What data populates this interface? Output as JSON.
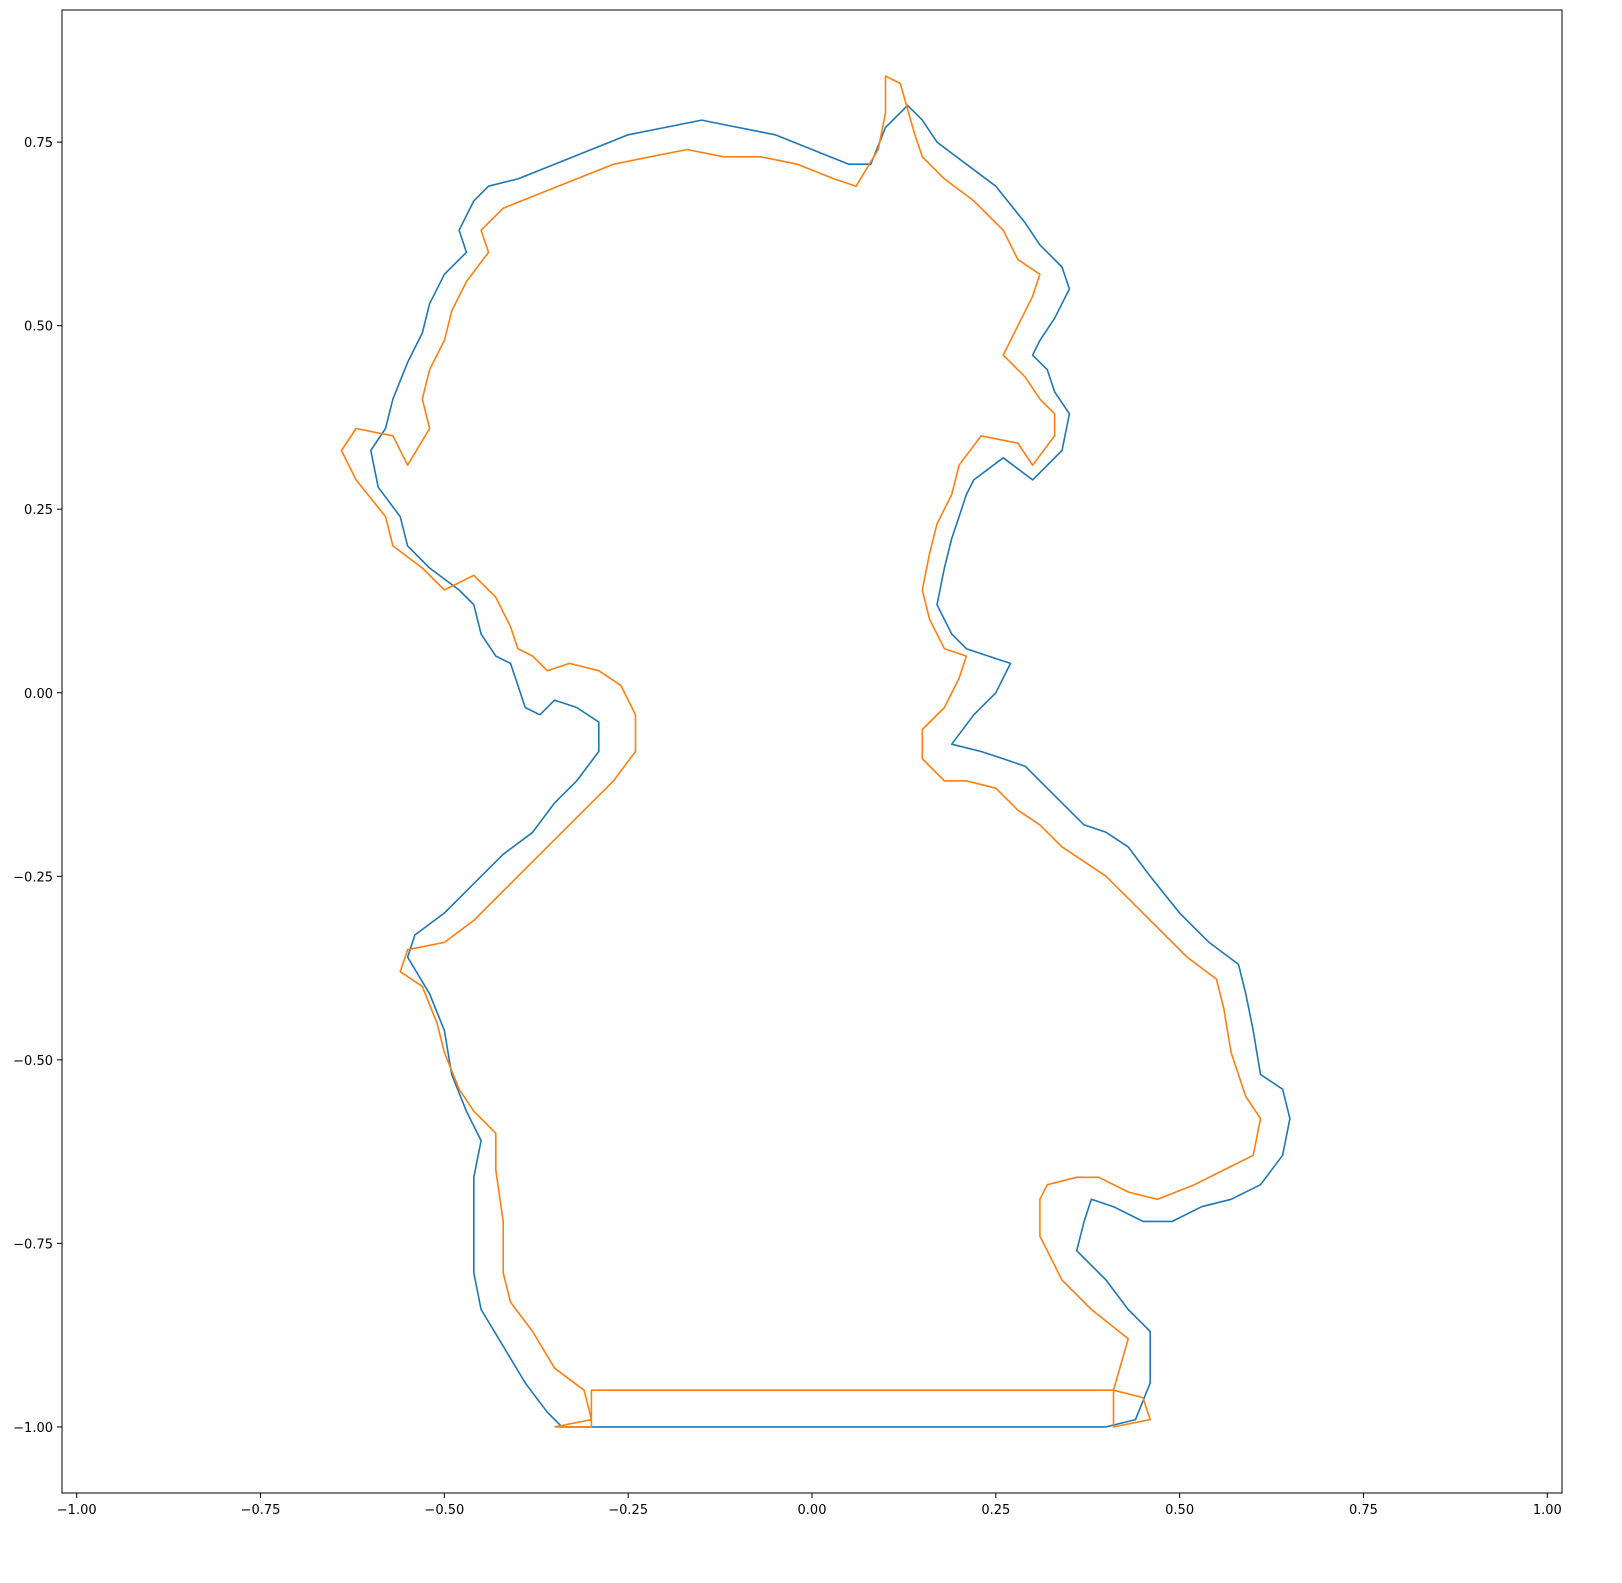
{
  "chart_data": {
    "type": "line",
    "title": "",
    "xlabel": "",
    "ylabel": "",
    "xlim": [
      -1.02,
      1.02
    ],
    "ylim": [
      -1.09,
      0.93
    ],
    "grid": false,
    "legend": "none",
    "x_ticks": [
      {
        "value": -1.0,
        "label": "−1.00"
      },
      {
        "value": -0.75,
        "label": "−0.75"
      },
      {
        "value": -0.5,
        "label": "−0.50"
      },
      {
        "value": -0.25,
        "label": "−0.25"
      },
      {
        "value": 0.0,
        "label": "0.00"
      },
      {
        "value": 0.25,
        "label": "0.25"
      },
      {
        "value": 0.5,
        "label": "0.50"
      },
      {
        "value": 0.75,
        "label": "0.75"
      },
      {
        "value": 1.0,
        "label": "1.00"
      }
    ],
    "y_ticks": [
      {
        "value": 0.75,
        "label": "0.75"
      },
      {
        "value": 0.5,
        "label": "0.50"
      },
      {
        "value": 0.25,
        "label": "0.25"
      },
      {
        "value": 0.0,
        "label": "0.00"
      },
      {
        "value": -0.25,
        "label": "−0.25"
      },
      {
        "value": -0.5,
        "label": "−0.50"
      },
      {
        "value": -0.75,
        "label": "−0.75"
      },
      {
        "value": -1.0,
        "label": "−1.00"
      }
    ],
    "series": [
      {
        "color": "#1f77b4",
        "points": [
          [
            -0.3,
            -1.0
          ],
          [
            0.4,
            -1.0
          ],
          [
            0.44,
            -0.99
          ],
          [
            0.46,
            -0.94
          ],
          [
            0.46,
            -0.87
          ],
          [
            0.43,
            -0.84
          ],
          [
            0.4,
            -0.8
          ],
          [
            0.38,
            -0.78
          ],
          [
            0.36,
            -0.76
          ],
          [
            0.37,
            -0.72
          ],
          [
            0.38,
            -0.69
          ],
          [
            0.41,
            -0.7
          ],
          [
            0.45,
            -0.72
          ],
          [
            0.49,
            -0.72
          ],
          [
            0.53,
            -0.7
          ],
          [
            0.57,
            -0.69
          ],
          [
            0.61,
            -0.67
          ],
          [
            0.64,
            -0.63
          ],
          [
            0.65,
            -0.58
          ],
          [
            0.64,
            -0.54
          ],
          [
            0.61,
            -0.52
          ],
          [
            0.6,
            -0.46
          ],
          [
            0.59,
            -0.41
          ],
          [
            0.58,
            -0.37
          ],
          [
            0.54,
            -0.34
          ],
          [
            0.5,
            -0.3
          ],
          [
            0.46,
            -0.25
          ],
          [
            0.43,
            -0.21
          ],
          [
            0.4,
            -0.19
          ],
          [
            0.37,
            -0.18
          ],
          [
            0.34,
            -0.15
          ],
          [
            0.31,
            -0.12
          ],
          [
            0.29,
            -0.1
          ],
          [
            0.26,
            -0.09
          ],
          [
            0.23,
            -0.08
          ],
          [
            0.19,
            -0.07
          ],
          [
            0.22,
            -0.03
          ],
          [
            0.25,
            0.0
          ],
          [
            0.27,
            0.04
          ],
          [
            0.24,
            0.05
          ],
          [
            0.21,
            0.06
          ],
          [
            0.19,
            0.08
          ],
          [
            0.17,
            0.12
          ],
          [
            0.18,
            0.17
          ],
          [
            0.19,
            0.21
          ],
          [
            0.2,
            0.24
          ],
          [
            0.21,
            0.27
          ],
          [
            0.22,
            0.29
          ],
          [
            0.26,
            0.32
          ],
          [
            0.3,
            0.29
          ],
          [
            0.34,
            0.33
          ],
          [
            0.35,
            0.38
          ],
          [
            0.33,
            0.41
          ],
          [
            0.32,
            0.44
          ],
          [
            0.3,
            0.46
          ],
          [
            0.31,
            0.48
          ],
          [
            0.33,
            0.51
          ],
          [
            0.35,
            0.55
          ],
          [
            0.34,
            0.58
          ],
          [
            0.31,
            0.61
          ],
          [
            0.29,
            0.64
          ],
          [
            0.25,
            0.69
          ],
          [
            0.21,
            0.72
          ],
          [
            0.17,
            0.75
          ],
          [
            0.15,
            0.78
          ],
          [
            0.13,
            0.8
          ],
          [
            0.1,
            0.77
          ],
          [
            0.08,
            0.72
          ],
          [
            0.05,
            0.72
          ],
          [
            0.0,
            0.74
          ],
          [
            -0.05,
            0.76
          ],
          [
            -0.1,
            0.77
          ],
          [
            -0.15,
            0.78
          ],
          [
            -0.2,
            0.77
          ],
          [
            -0.25,
            0.76
          ],
          [
            -0.3,
            0.74
          ],
          [
            -0.35,
            0.72
          ],
          [
            -0.4,
            0.7
          ],
          [
            -0.44,
            0.69
          ],
          [
            -0.46,
            0.67
          ],
          [
            -0.48,
            0.63
          ],
          [
            -0.47,
            0.6
          ],
          [
            -0.5,
            0.57
          ],
          [
            -0.52,
            0.53
          ],
          [
            -0.53,
            0.49
          ],
          [
            -0.55,
            0.45
          ],
          [
            -0.57,
            0.4
          ],
          [
            -0.58,
            0.36
          ],
          [
            -0.6,
            0.33
          ],
          [
            -0.59,
            0.28
          ],
          [
            -0.56,
            0.24
          ],
          [
            -0.55,
            0.2
          ],
          [
            -0.52,
            0.17
          ],
          [
            -0.48,
            0.14
          ],
          [
            -0.46,
            0.12
          ],
          [
            -0.45,
            0.08
          ],
          [
            -0.43,
            0.05
          ],
          [
            -0.41,
            0.04
          ],
          [
            -0.4,
            0.01
          ],
          [
            -0.39,
            -0.02
          ],
          [
            -0.37,
            -0.03
          ],
          [
            -0.35,
            -0.01
          ],
          [
            -0.32,
            -0.02
          ],
          [
            -0.29,
            -0.04
          ],
          [
            -0.29,
            -0.08
          ],
          [
            -0.32,
            -0.12
          ],
          [
            -0.35,
            -0.15
          ],
          [
            -0.38,
            -0.19
          ],
          [
            -0.42,
            -0.22
          ],
          [
            -0.46,
            -0.26
          ],
          [
            -0.5,
            -0.3
          ],
          [
            -0.54,
            -0.33
          ],
          [
            -0.55,
            -0.36
          ],
          [
            -0.52,
            -0.41
          ],
          [
            -0.5,
            -0.46
          ],
          [
            -0.49,
            -0.52
          ],
          [
            -0.47,
            -0.57
          ],
          [
            -0.45,
            -0.61
          ],
          [
            -0.46,
            -0.66
          ],
          [
            -0.46,
            -0.72
          ],
          [
            -0.46,
            -0.79
          ],
          [
            -0.45,
            -0.84
          ],
          [
            -0.42,
            -0.89
          ],
          [
            -0.39,
            -0.94
          ],
          [
            -0.36,
            -0.98
          ],
          [
            -0.34,
            -1.0
          ],
          [
            -0.3,
            -1.0
          ]
        ]
      },
      {
        "color": "#ff7f0e",
        "points": [
          [
            -0.35,
            -1.0
          ],
          [
            -0.3,
            -1.0
          ],
          [
            -0.3,
            -0.95
          ],
          [
            0.41,
            -0.95
          ],
          [
            0.45,
            -0.96
          ],
          [
            0.46,
            -0.99
          ],
          [
            0.41,
            -1.0
          ],
          [
            0.41,
            -0.95
          ],
          [
            0.43,
            -0.88
          ],
          [
            0.38,
            -0.84
          ],
          [
            0.34,
            -0.8
          ],
          [
            0.33,
            -0.78
          ],
          [
            0.31,
            -0.74
          ],
          [
            0.31,
            -0.69
          ],
          [
            0.32,
            -0.67
          ],
          [
            0.36,
            -0.66
          ],
          [
            0.39,
            -0.66
          ],
          [
            0.43,
            -0.68
          ],
          [
            0.47,
            -0.69
          ],
          [
            0.52,
            -0.67
          ],
          [
            0.56,
            -0.65
          ],
          [
            0.6,
            -0.63
          ],
          [
            0.61,
            -0.58
          ],
          [
            0.59,
            -0.55
          ],
          [
            0.57,
            -0.49
          ],
          [
            0.56,
            -0.43
          ],
          [
            0.55,
            -0.39
          ],
          [
            0.51,
            -0.36
          ],
          [
            0.47,
            -0.32
          ],
          [
            0.43,
            -0.28
          ],
          [
            0.4,
            -0.25
          ],
          [
            0.37,
            -0.23
          ],
          [
            0.34,
            -0.21
          ],
          [
            0.31,
            -0.18
          ],
          [
            0.28,
            -0.16
          ],
          [
            0.25,
            -0.13
          ],
          [
            0.21,
            -0.12
          ],
          [
            0.18,
            -0.12
          ],
          [
            0.15,
            -0.09
          ],
          [
            0.15,
            -0.05
          ],
          [
            0.18,
            -0.02
          ],
          [
            0.2,
            0.02
          ],
          [
            0.21,
            0.05
          ],
          [
            0.18,
            0.06
          ],
          [
            0.16,
            0.1
          ],
          [
            0.15,
            0.14
          ],
          [
            0.16,
            0.19
          ],
          [
            0.17,
            0.23
          ],
          [
            0.19,
            0.27
          ],
          [
            0.2,
            0.31
          ],
          [
            0.23,
            0.35
          ],
          [
            0.28,
            0.34
          ],
          [
            0.3,
            0.31
          ],
          [
            0.33,
            0.35
          ],
          [
            0.33,
            0.38
          ],
          [
            0.31,
            0.4
          ],
          [
            0.29,
            0.43
          ],
          [
            0.26,
            0.46
          ],
          [
            0.28,
            0.5
          ],
          [
            0.3,
            0.54
          ],
          [
            0.31,
            0.57
          ],
          [
            0.28,
            0.59
          ],
          [
            0.26,
            0.63
          ],
          [
            0.22,
            0.67
          ],
          [
            0.18,
            0.7
          ],
          [
            0.15,
            0.73
          ],
          [
            0.14,
            0.76
          ],
          [
            0.12,
            0.83
          ],
          [
            0.1,
            0.84
          ],
          [
            0.1,
            0.79
          ],
          [
            0.09,
            0.74
          ],
          [
            0.06,
            0.69
          ],
          [
            0.03,
            0.7
          ],
          [
            -0.02,
            0.72
          ],
          [
            -0.07,
            0.73
          ],
          [
            -0.12,
            0.73
          ],
          [
            -0.17,
            0.74
          ],
          [
            -0.22,
            0.73
          ],
          [
            -0.27,
            0.72
          ],
          [
            -0.32,
            0.7
          ],
          [
            -0.37,
            0.68
          ],
          [
            -0.42,
            0.66
          ],
          [
            -0.45,
            0.63
          ],
          [
            -0.44,
            0.6
          ],
          [
            -0.47,
            0.56
          ],
          [
            -0.49,
            0.52
          ],
          [
            -0.5,
            0.48
          ],
          [
            -0.52,
            0.44
          ],
          [
            -0.53,
            0.4
          ],
          [
            -0.52,
            0.36
          ],
          [
            -0.55,
            0.31
          ],
          [
            -0.57,
            0.35
          ],
          [
            -0.62,
            0.36
          ],
          [
            -0.64,
            0.33
          ],
          [
            -0.62,
            0.29
          ],
          [
            -0.58,
            0.24
          ],
          [
            -0.57,
            0.2
          ],
          [
            -0.53,
            0.17
          ],
          [
            -0.5,
            0.14
          ],
          [
            -0.46,
            0.16
          ],
          [
            -0.43,
            0.13
          ],
          [
            -0.41,
            0.09
          ],
          [
            -0.4,
            0.06
          ],
          [
            -0.38,
            0.05
          ],
          [
            -0.36,
            0.03
          ],
          [
            -0.33,
            0.04
          ],
          [
            -0.29,
            0.03
          ],
          [
            -0.26,
            0.01
          ],
          [
            -0.24,
            -0.03
          ],
          [
            -0.24,
            -0.08
          ],
          [
            -0.27,
            -0.12
          ],
          [
            -0.3,
            -0.15
          ],
          [
            -0.34,
            -0.19
          ],
          [
            -0.38,
            -0.23
          ],
          [
            -0.42,
            -0.27
          ],
          [
            -0.46,
            -0.31
          ],
          [
            -0.5,
            -0.34
          ],
          [
            -0.55,
            -0.35
          ],
          [
            -0.56,
            -0.38
          ],
          [
            -0.53,
            -0.4
          ],
          [
            -0.51,
            -0.45
          ],
          [
            -0.5,
            -0.49
          ],
          [
            -0.48,
            -0.54
          ],
          [
            -0.46,
            -0.57
          ],
          [
            -0.43,
            -0.6
          ],
          [
            -0.43,
            -0.65
          ],
          [
            -0.42,
            -0.72
          ],
          [
            -0.42,
            -0.79
          ],
          [
            -0.41,
            -0.83
          ],
          [
            -0.38,
            -0.87
          ],
          [
            -0.35,
            -0.92
          ],
          [
            -0.31,
            -0.95
          ],
          [
            -0.3,
            -0.99
          ],
          [
            -0.35,
            -1.0
          ]
        ]
      }
    ]
  }
}
